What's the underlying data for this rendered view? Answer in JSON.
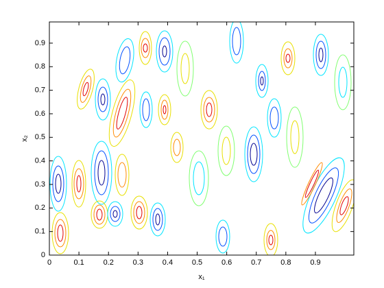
{
  "chart_data": {
    "type": "contour",
    "xlabel": "x₁",
    "ylabel": "x₂",
    "xlim": [
      0,
      1.03
    ],
    "ylim": [
      0,
      0.99
    ],
    "xticks": [
      0,
      0.1,
      0.2,
      0.3,
      0.4,
      0.5,
      0.6,
      0.7,
      0.8,
      0.9
    ],
    "yticks": [
      0,
      0.1,
      0.2,
      0.3,
      0.4,
      0.5,
      0.6,
      0.7,
      0.8,
      0.9
    ]
  }
}
